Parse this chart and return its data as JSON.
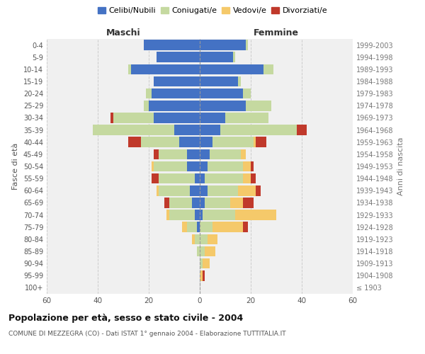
{
  "age_groups": [
    "100+",
    "95-99",
    "90-94",
    "85-89",
    "80-84",
    "75-79",
    "70-74",
    "65-69",
    "60-64",
    "55-59",
    "50-54",
    "45-49",
    "40-44",
    "35-39",
    "30-34",
    "25-29",
    "20-24",
    "15-19",
    "10-14",
    "5-9",
    "0-4"
  ],
  "birth_years": [
    "≤ 1903",
    "1904-1908",
    "1909-1913",
    "1914-1918",
    "1919-1923",
    "1924-1928",
    "1929-1933",
    "1934-1938",
    "1939-1943",
    "1944-1948",
    "1949-1953",
    "1954-1958",
    "1959-1963",
    "1964-1968",
    "1969-1973",
    "1974-1978",
    "1979-1983",
    "1984-1988",
    "1989-1993",
    "1994-1998",
    "1999-2003"
  ],
  "colors": {
    "celibi": "#4472c4",
    "coniugati": "#c5d9a0",
    "vedovi": "#f5c96a",
    "divorziati": "#c0392b"
  },
  "maschi": {
    "celibi": [
      0,
      0,
      0,
      0,
      0,
      1,
      2,
      3,
      4,
      2,
      5,
      5,
      8,
      10,
      18,
      20,
      19,
      18,
      27,
      17,
      22
    ],
    "coniugati": [
      0,
      0,
      0,
      1,
      2,
      4,
      10,
      9,
      12,
      14,
      13,
      11,
      15,
      32,
      16,
      2,
      2,
      0,
      1,
      0,
      0
    ],
    "vedovi": [
      0,
      0,
      0,
      0,
      1,
      2,
      1,
      0,
      1,
      0,
      1,
      0,
      0,
      0,
      0,
      0,
      0,
      0,
      0,
      0,
      0
    ],
    "divorziati": [
      0,
      0,
      0,
      0,
      0,
      0,
      0,
      2,
      0,
      3,
      0,
      2,
      5,
      0,
      1,
      0,
      0,
      0,
      0,
      0,
      0
    ]
  },
  "femmine": {
    "celibi": [
      0,
      0,
      0,
      0,
      0,
      0,
      1,
      2,
      3,
      2,
      3,
      4,
      5,
      8,
      10,
      18,
      17,
      15,
      25,
      13,
      18
    ],
    "coniugati": [
      0,
      0,
      1,
      2,
      3,
      5,
      13,
      10,
      12,
      15,
      14,
      12,
      16,
      30,
      17,
      10,
      3,
      1,
      4,
      1,
      1
    ],
    "vedovi": [
      0,
      1,
      3,
      4,
      4,
      12,
      16,
      5,
      7,
      3,
      3,
      2,
      1,
      0,
      0,
      0,
      0,
      0,
      0,
      0,
      0
    ],
    "divorziati": [
      0,
      1,
      0,
      0,
      0,
      2,
      0,
      4,
      2,
      2,
      1,
      0,
      4,
      4,
      0,
      0,
      0,
      0,
      0,
      0,
      0
    ]
  },
  "xlim": 60,
  "title": "Popolazione per età, sesso e stato civile - 2004",
  "subtitle": "COMUNE DI MEZZEGRA (CO) - Dati ISTAT 1° gennaio 2004 - Elaborazione TUTTITALIA.IT",
  "ylabel_left": "Fasce di età",
  "ylabel_right": "Anni di nascita",
  "xlabel_left": "Maschi",
  "xlabel_right": "Femmine",
  "legend_labels": [
    "Celibi/Nubili",
    "Coniugati/e",
    "Vedovi/e",
    "Divorziati/e"
  ],
  "background_color": "#ffffff",
  "plot_bg_color": "#f0f0f0",
  "grid_color": "#cccccc"
}
